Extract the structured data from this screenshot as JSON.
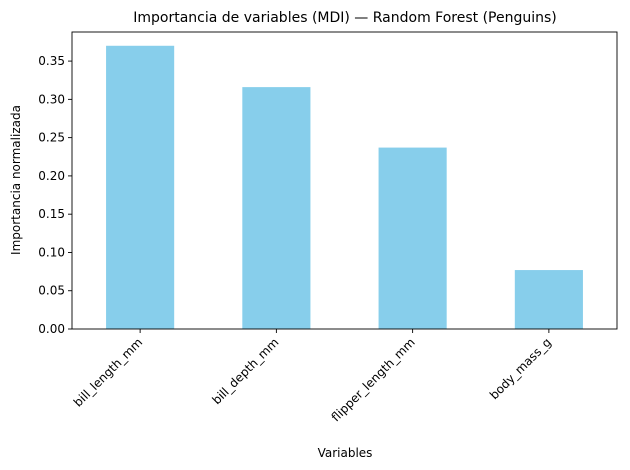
{
  "chart_data": {
    "type": "bar",
    "title": "Importancia de variables (MDI) — Random Forest (Penguins)",
    "xlabel": "Variables",
    "ylabel": "Importancia normalizada",
    "categories": [
      "bill_length_mm",
      "bill_depth_mm",
      "flipper_length_mm",
      "body_mass_g"
    ],
    "values": [
      0.37,
      0.316,
      0.237,
      0.077
    ],
    "ylim": [
      0,
      0.388
    ],
    "yticks": [
      0.0,
      0.05,
      0.1,
      0.15,
      0.2,
      0.25,
      0.3,
      0.35
    ],
    "ytick_labels": [
      "0.00",
      "0.05",
      "0.10",
      "0.15",
      "0.20",
      "0.25",
      "0.30",
      "0.35"
    ],
    "bar_color": "#87ceeb",
    "grid": false,
    "legend": "none"
  }
}
